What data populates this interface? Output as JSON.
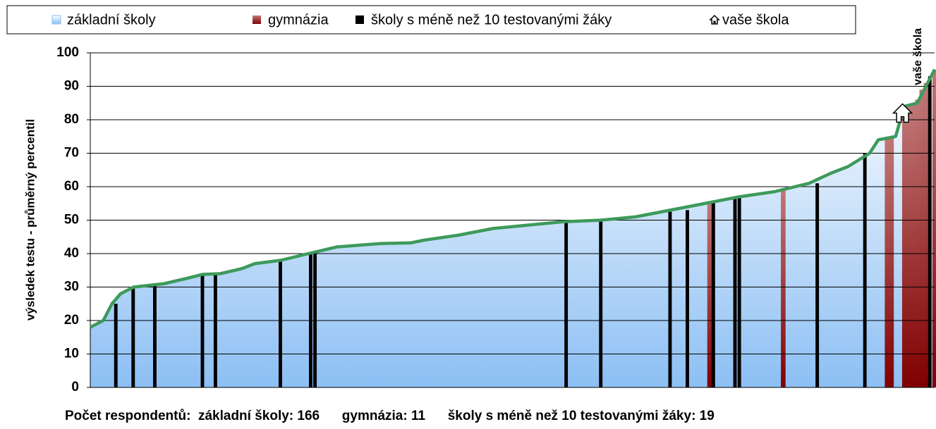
{
  "chart_data": {
    "type": "area",
    "ylabel": "výsledek testu - průměrný percentil",
    "annotation": "vaše škola",
    "footer": "Počet respondentů:  základní školy: 166      gymnázia: 11      školy s méně než 10 testovanými žáky: 19",
    "xlim": [
      0,
      195
    ],
    "ylim": [
      0,
      100
    ],
    "yticks": [
      0,
      10,
      20,
      30,
      40,
      50,
      60,
      70,
      80,
      90,
      100
    ],
    "grid": true,
    "line_color": "#3d9a5b",
    "series": [
      {
        "name": "základní školy",
        "color": "#9cc8f5",
        "x": [
          0,
          3,
          5,
          7,
          10,
          17,
          22,
          26,
          30,
          35,
          38,
          44,
          52,
          57,
          67,
          74,
          77,
          85,
          93,
          101,
          109,
          118,
          126,
          134,
          142,
          150,
          158,
          166,
          171,
          175,
          180,
          182,
          186,
          188,
          191,
          193,
          195
        ],
        "values": [
          18,
          20,
          25,
          28,
          30,
          31,
          32.5,
          33.8,
          34,
          35.5,
          37,
          38,
          40.5,
          42,
          43,
          43.2,
          44,
          45.5,
          47.5,
          48.5,
          49.5,
          50,
          51,
          53,
          55,
          57,
          58.5,
          61,
          64,
          66,
          70,
          74,
          75,
          84,
          85,
          90,
          95
        ]
      },
      {
        "name": "gymnázia",
        "color": "#a23c3c",
        "x": [
          143,
          160,
          184,
          185,
          188,
          189,
          190,
          191,
          192,
          193,
          195
        ],
        "values": [
          55,
          59.5,
          74.5,
          75,
          84,
          84.5,
          85,
          86,
          89,
          91,
          95
        ]
      },
      {
        "name": "školy s méně než 10 testovanými žáky",
        "color": "#000000",
        "x": [
          6,
          10,
          15,
          26,
          29,
          44,
          51,
          52,
          110,
          118,
          134,
          138,
          144,
          149,
          150,
          168,
          179,
          194
        ],
        "values": [
          25,
          29.5,
          30.5,
          33.5,
          33.8,
          38,
          40,
          40.5,
          49.5,
          50,
          52.5,
          53,
          55.5,
          56.5,
          56.7,
          61,
          70,
          93
        ]
      },
      {
        "name": "vaše škola",
        "color": "#ffffff",
        "x": [
          187.6
        ],
        "values": [
          82
        ]
      }
    ]
  }
}
